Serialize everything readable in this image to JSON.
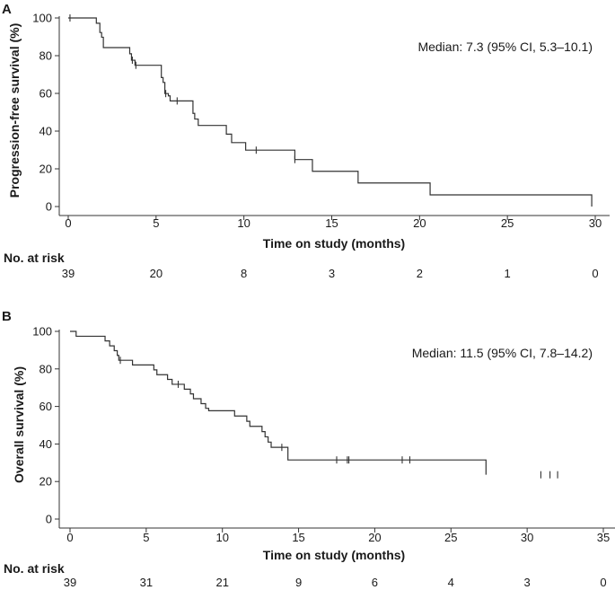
{
  "chart_data": [
    {
      "type": "line",
      "panel_label": "A",
      "title": "",
      "xlabel": "Time on study (months)",
      "ylabel": "Progression-free survival (%)",
      "xlim": [
        0,
        30
      ],
      "ylim": [
        0,
        100
      ],
      "xticks": [
        0,
        5,
        10,
        15,
        20,
        25,
        30
      ],
      "yticks": [
        0,
        20,
        40,
        60,
        80,
        100
      ],
      "annotation": "Median: 7.3 (95% CI, 5.3–10.1)",
      "risk_table": {
        "header": "No. at risk",
        "times": [
          0,
          5,
          10,
          15,
          20,
          25,
          30
        ],
        "counts": [
          39,
          20,
          8,
          3,
          2,
          1,
          0
        ]
      },
      "series": [
        {
          "name": "Progression-free survival",
          "steps": [
            {
              "t": 0,
              "s": 100
            },
            {
              "t": 1.6,
              "s": 97.2
            },
            {
              "t": 1.8,
              "s": 92.3
            },
            {
              "t": 1.9,
              "s": 89.8
            },
            {
              "t": 2.0,
              "s": 84.3
            },
            {
              "t": 3.5,
              "s": 81.0
            },
            {
              "t": 3.6,
              "s": 77.6
            },
            {
              "t": 3.8,
              "s": 74.9
            },
            {
              "t": 5.3,
              "s": 68.4
            },
            {
              "t": 5.4,
              "s": 65.8
            },
            {
              "t": 5.5,
              "s": 59.9
            },
            {
              "t": 5.7,
              "s": 58.7
            },
            {
              "t": 5.8,
              "s": 56.0
            },
            {
              "t": 7.1,
              "s": 49.4
            },
            {
              "t": 7.2,
              "s": 46.4
            },
            {
              "t": 7.4,
              "s": 43.0
            },
            {
              "t": 9.0,
              "s": 38.4
            },
            {
              "t": 9.3,
              "s": 33.9
            },
            {
              "t": 10.1,
              "s": 29.9
            },
            {
              "t": 12.9,
              "s": 24.9
            },
            {
              "t": 13.9,
              "s": 18.7
            },
            {
              "t": 16.5,
              "s": 12.5
            },
            {
              "t": 20.6,
              "s": 6.2
            },
            {
              "t": 29.8,
              "s": 0
            }
          ],
          "censored": [
            {
              "t": 0.1,
              "s": 100
            },
            {
              "t": 3.65,
              "s": 77.6
            },
            {
              "t": 3.85,
              "s": 74.9
            },
            {
              "t": 5.55,
              "s": 59.9
            },
            {
              "t": 6.2,
              "s": 56.0
            },
            {
              "t": 10.7,
              "s": 29.9
            },
            {
              "t": 12.9,
              "s": 24.9
            }
          ]
        }
      ]
    },
    {
      "type": "line",
      "panel_label": "B",
      "title": "",
      "xlabel": "Time on study (months)",
      "ylabel": "Overall survival (%)",
      "xlim": [
        0,
        35
      ],
      "ylim": [
        0,
        100
      ],
      "xticks": [
        0,
        5,
        10,
        15,
        20,
        25,
        30,
        35
      ],
      "yticks": [
        0,
        20,
        40,
        60,
        80,
        100
      ],
      "annotation": "Median: 11.5 (95% CI, 7.8–14.2)",
      "risk_table": {
        "header": "No. at risk",
        "times": [
          0,
          5,
          10,
          15,
          20,
          25,
          30,
          35
        ],
        "counts": [
          39,
          31,
          21,
          9,
          6,
          4,
          3,
          0
        ]
      },
      "series": [
        {
          "name": "Overall survival",
          "steps": [
            {
              "t": 0,
              "s": 100
            },
            {
              "t": 0.4,
              "s": 97.4
            },
            {
              "t": 2.3,
              "s": 94.9
            },
            {
              "t": 2.6,
              "s": 92.3
            },
            {
              "t": 2.9,
              "s": 89.7
            },
            {
              "t": 3.1,
              "s": 87.2
            },
            {
              "t": 3.2,
              "s": 84.6
            },
            {
              "t": 4.1,
              "s": 82.1
            },
            {
              "t": 5.5,
              "s": 79.5
            },
            {
              "t": 5.7,
              "s": 76.9
            },
            {
              "t": 6.4,
              "s": 74.4
            },
            {
              "t": 6.7,
              "s": 71.8
            },
            {
              "t": 7.5,
              "s": 69.2
            },
            {
              "t": 7.9,
              "s": 66.7
            },
            {
              "t": 8.1,
              "s": 64.1
            },
            {
              "t": 8.6,
              "s": 61.5
            },
            {
              "t": 8.9,
              "s": 59.0
            },
            {
              "t": 9.1,
              "s": 57.7
            },
            {
              "t": 10.8,
              "s": 54.9
            },
            {
              "t": 11.6,
              "s": 52.1
            },
            {
              "t": 11.8,
              "s": 49.4
            },
            {
              "t": 12.6,
              "s": 46.6
            },
            {
              "t": 12.8,
              "s": 43.8
            },
            {
              "t": 13.0,
              "s": 41.0
            },
            {
              "t": 13.2,
              "s": 38.2
            },
            {
              "t": 14.3,
              "s": 31.5
            },
            {
              "t": 27.3,
              "s": 23.6
            }
          ],
          "censored": [
            {
              "t": 3.3,
              "s": 84.6
            },
            {
              "t": 7.1,
              "s": 71.8
            },
            {
              "t": 13.9,
              "s": 38.2
            },
            {
              "t": 17.5,
              "s": 31.5
            },
            {
              "t": 18.2,
              "s": 31.5
            },
            {
              "t": 18.3,
              "s": 31.5
            },
            {
              "t": 21.8,
              "s": 31.5
            },
            {
              "t": 22.3,
              "s": 31.5
            },
            {
              "t": 30.9,
              "s": 23.6
            },
            {
              "t": 31.5,
              "s": 23.6
            },
            {
              "t": 32.0,
              "s": 23.6
            }
          ]
        }
      ]
    }
  ]
}
